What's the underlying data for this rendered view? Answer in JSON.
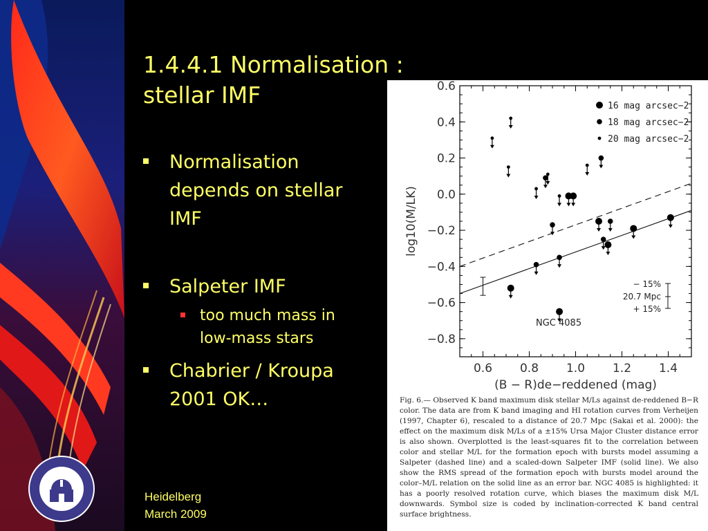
{
  "slide": {
    "title_line1": "1.4.4.1 Normalisation :",
    "title_line2": "stellar IMF",
    "bullets": [
      {
        "level": 1,
        "line1": "Normalisation",
        "line2": "depends on stellar",
        "line3": "IMF"
      },
      {
        "level": 1,
        "line1": "Salpeter IMF"
      },
      {
        "level": 2,
        "line1": "too much mass in",
        "line2": "low-mass stars"
      },
      {
        "level": 1,
        "line1": "Chabrier / Kroupa",
        "line2": "2001 OK…"
      }
    ],
    "footer_line1": "Heidelberg",
    "footer_line2": "March 2009"
  },
  "colors": {
    "text_yellow": "#ffff66",
    "bullet_level1": "#ffff66",
    "bullet_level2": "#ff3333",
    "logo_purple": "#3d3a8c",
    "background": "#000000"
  },
  "chart_data": {
    "type": "scatter",
    "xlabel": "(B − R)de−reddened (mag)",
    "ylabel": "log10(M/LK)",
    "xlim": [
      0.5,
      1.5
    ],
    "ylim": [
      -0.9,
      0.6
    ],
    "xticks": [
      "0.6",
      "0.8",
      "1.0",
      "1.2",
      "1.4"
    ],
    "yticks": [
      "0.6",
      "0.4",
      "0.2",
      "0.0",
      "−0.2",
      "−0.4",
      "−0.6",
      "−0.8"
    ],
    "legend": [
      {
        "label": "16 mag arcsec−2",
        "size": "large"
      },
      {
        "label": "18 mag arcsec−2",
        "size": "medium"
      },
      {
        "label": "20 mag arcsec−2",
        "size": "small"
      }
    ],
    "points": [
      {
        "x": 0.64,
        "y": 0.31,
        "size": "small",
        "upper": true
      },
      {
        "x": 0.72,
        "y": 0.42,
        "size": "small",
        "upper": true
      },
      {
        "x": 0.71,
        "y": 0.15,
        "size": "small",
        "upper": true
      },
      {
        "x": 0.88,
        "y": 0.11,
        "size": "small",
        "upper": true
      },
      {
        "x": 0.87,
        "y": 0.09,
        "size": "medium",
        "upper": true
      },
      {
        "x": 0.83,
        "y": 0.03,
        "size": "small",
        "upper": true
      },
      {
        "x": 1.05,
        "y": 0.16,
        "size": "small",
        "upper": true
      },
      {
        "x": 1.11,
        "y": 0.2,
        "size": "medium",
        "upper": true
      },
      {
        "x": 0.93,
        "y": -0.01,
        "size": "small",
        "upper": true
      },
      {
        "x": 0.97,
        "y": -0.01,
        "size": "large",
        "upper": true
      },
      {
        "x": 0.99,
        "y": -0.01,
        "size": "large",
        "upper": true
      },
      {
        "x": 1.1,
        "y": -0.15,
        "size": "large",
        "upper": true
      },
      {
        "x": 1.15,
        "y": -0.15,
        "size": "medium",
        "upper": true
      },
      {
        "x": 0.9,
        "y": -0.17,
        "size": "medium",
        "upper": true
      },
      {
        "x": 1.25,
        "y": -0.19,
        "size": "large",
        "upper": true
      },
      {
        "x": 1.41,
        "y": -0.13,
        "size": "large",
        "upper": true
      },
      {
        "x": 1.12,
        "y": -0.25,
        "size": "medium",
        "upper": true
      },
      {
        "x": 1.14,
        "y": -0.28,
        "size": "large",
        "upper": true
      },
      {
        "x": 0.93,
        "y": -0.35,
        "size": "medium",
        "upper": true
      },
      {
        "x": 0.83,
        "y": -0.39,
        "size": "medium",
        "upper": true
      },
      {
        "x": 0.72,
        "y": -0.52,
        "size": "large",
        "upper": true
      },
      {
        "x": 0.93,
        "y": -0.65,
        "size": "large",
        "upper": true
      }
    ],
    "lines": [
      {
        "name": "Salpeter",
        "style": "dashed",
        "x": [
          0.5,
          1.5
        ],
        "y": [
          -0.4,
          0.06
        ]
      },
      {
        "name": "scaled-down Salpeter",
        "style": "solid",
        "x": [
          0.5,
          1.5
        ],
        "y": [
          -0.55,
          -0.09
        ]
      }
    ],
    "errorbar": {
      "x": 0.6,
      "y": -0.51,
      "yerr": 0.05
    },
    "annotations": {
      "ngc": "NGC 4085",
      "dist_minus": "− 15%",
      "dist_value": "20.7 Mpc",
      "dist_plus": "+ 15%"
    },
    "caption": "Fig. 6.— Observed K band maximum disk stellar M/Ls against de-reddened B−R color. The data are from K band imaging and HI rotation curves from Verheijen (1997, Chapter 6), rescaled to a distance of 20.7 Mpc (Sakai et al. 2000): the effect on the maximum disk M/Ls of a ±15% Ursa Major Cluster distance error is also shown. Overplotted is the least-squares fit to the correlation between color and stellar M/L for the formation epoch with bursts model assuming a Salpeter (dashed line) and a scaled-down Salpeter IMF (solid line). We also show the RMS spread of the formation epoch with bursts model around the color–M/L relation on the solid line as an error bar. NGC 4085 is highlighted: it has a poorly resolved rotation curve, which biases the maximum disk M/L downwards. Symbol size is coded by inclination-corrected K band central surface brightness."
  }
}
